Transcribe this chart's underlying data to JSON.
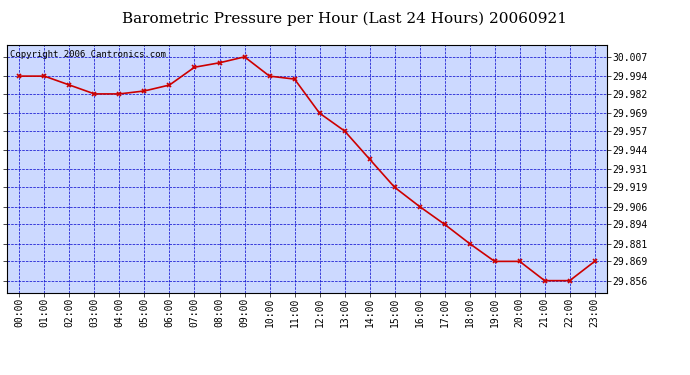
{
  "title": "Barometric Pressure per Hour (Last 24 Hours) 20060921",
  "copyright_text": "Copyright 2006 Cantronics.com",
  "line_color": "#cc0000",
  "marker_color": "#cc0000",
  "bg_color": "#ffffff",
  "plot_bg_color": "#ccd9ff",
  "grid_color": "#0000cc",
  "border_color": "#000000",
  "hours": [
    0,
    1,
    2,
    3,
    4,
    5,
    6,
    7,
    8,
    9,
    10,
    11,
    12,
    13,
    14,
    15,
    16,
    17,
    18,
    19,
    20,
    21,
    22,
    23
  ],
  "pressures": [
    29.994,
    29.994,
    29.988,
    29.982,
    29.982,
    29.984,
    29.988,
    30.0,
    30.003,
    30.007,
    29.994,
    29.992,
    29.969,
    29.957,
    29.938,
    29.919,
    29.906,
    29.894,
    29.881,
    29.869,
    29.869,
    29.856,
    29.856,
    29.869
  ],
  "yticks": [
    29.856,
    29.869,
    29.881,
    29.894,
    29.906,
    29.919,
    29.931,
    29.944,
    29.957,
    29.969,
    29.982,
    29.994,
    30.007
  ],
  "ylim_min": 29.848,
  "ylim_max": 30.015,
  "title_fontsize": 11,
  "tick_fontsize": 7,
  "copyright_fontsize": 6.5
}
